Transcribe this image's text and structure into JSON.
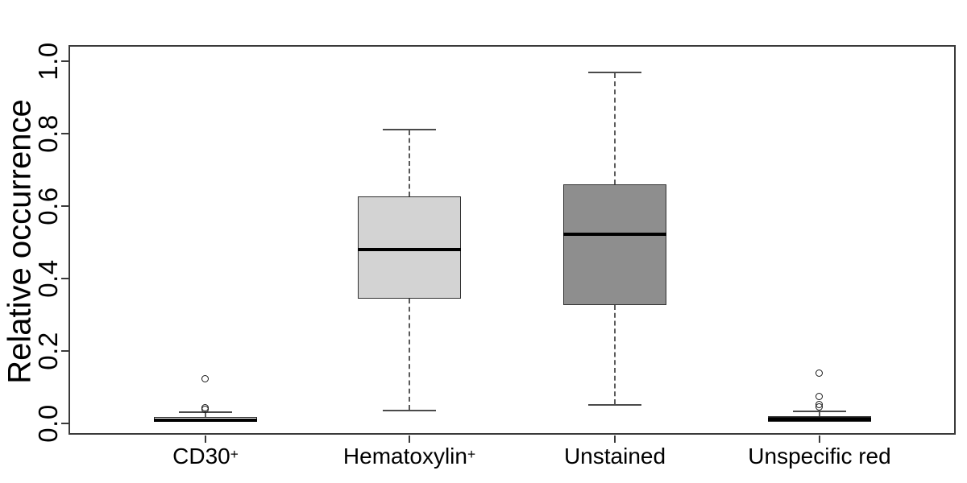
{
  "figure": {
    "background": "#ffffff"
  },
  "colors": {
    "frame": "#3a3a3a",
    "tick": "#3a3a3a",
    "whisker": "#4a4a4a",
    "median": "#000000",
    "text": "#000000"
  },
  "chart_data": {
    "type": "boxplot",
    "title": "",
    "xlabel": "",
    "ylabel": "Relative occurrence",
    "ylim": [
      0.0,
      1.0
    ],
    "grid": false,
    "legend": false,
    "yticks": [
      {
        "value": 0.0,
        "label": "0.0"
      },
      {
        "value": 0.2,
        "label": "0.2"
      },
      {
        "value": 0.4,
        "label": "0.4"
      },
      {
        "value": 0.6,
        "label": "0.6"
      },
      {
        "value": 0.8,
        "label": "0.8"
      },
      {
        "value": 1.0,
        "label": "1.0"
      }
    ],
    "boxes": [
      {
        "label": "CD30",
        "superscript": "+",
        "fill": "#ffffff",
        "whisker_low": 0.004,
        "q1": 0.004,
        "median": 0.008,
        "q3": 0.016,
        "whisker_high": 0.029,
        "outliers": [
          0.122,
          0.042,
          0.036
        ]
      },
      {
        "label": "Hematoxylin",
        "superscript": "+",
        "fill": "#d3d3d3",
        "whisker_low": 0.035,
        "q1": 0.343,
        "median": 0.479,
        "q3": 0.626,
        "whisker_high": 0.81,
        "outliers": []
      },
      {
        "label": "Unstained",
        "superscript": "",
        "fill": "#8e8e8e",
        "whisker_low": 0.05,
        "q1": 0.325,
        "median": 0.521,
        "q3": 0.659,
        "whisker_high": 0.967,
        "outliers": []
      },
      {
        "label": "Unspecific red",
        "superscript": "",
        "fill": "#1c1c1c",
        "whisker_low": 0.004,
        "q1": 0.004,
        "median": 0.01,
        "q3": 0.018,
        "whisker_high": 0.032,
        "outliers": [
          0.137,
          0.072,
          0.05,
          0.044
        ]
      }
    ]
  }
}
